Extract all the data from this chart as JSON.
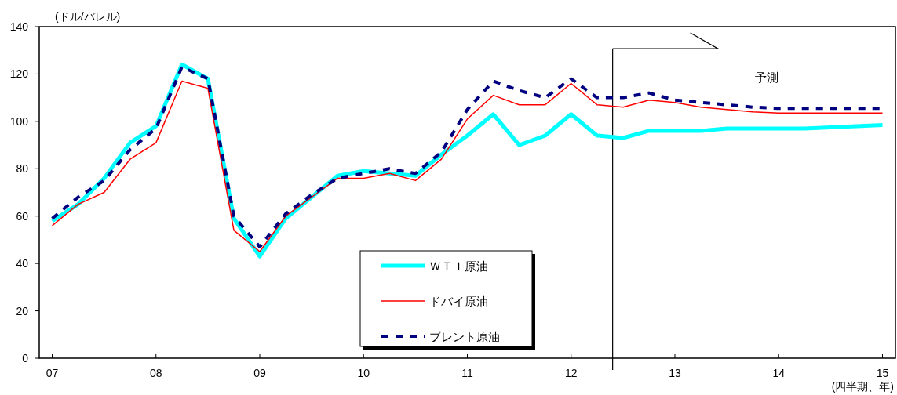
{
  "chart_data": {
    "type": "line",
    "ylabel": "(ドル/バレル)",
    "xlabel": "(四半期、年)",
    "xlim": [
      2006.875,
      2015.125
    ],
    "ylim": [
      0,
      140
    ],
    "xticks": [
      {
        "value": 2007,
        "label": "07"
      },
      {
        "value": 2008,
        "label": "08"
      },
      {
        "value": 2009,
        "label": "09"
      },
      {
        "value": 2010,
        "label": "10"
      },
      {
        "value": 2011,
        "label": "11"
      },
      {
        "value": 2012,
        "label": "12"
      },
      {
        "value": 2013,
        "label": "13"
      },
      {
        "value": 2014,
        "label": "14"
      },
      {
        "value": 2015,
        "label": "15"
      }
    ],
    "yticks": [
      0,
      20,
      40,
      60,
      80,
      100,
      120,
      140
    ],
    "x": [
      2007,
      2007.25,
      2007.5,
      2007.75,
      2008,
      2008.25,
      2008.5,
      2008.75,
      2009,
      2009.25,
      2009.5,
      2009.75,
      2010,
      2010.25,
      2010.5,
      2010.75,
      2011,
      2011.25,
      2011.5,
      2011.75,
      2012,
      2012.25,
      2012.5,
      2012.75,
      2013,
      2013.25,
      2013.5,
      2013.75,
      2014,
      2014.25,
      2014.5,
      2014.75,
      2015
    ],
    "legend": "bottom",
    "series": [
      {
        "name": "ＷＴＩ原油",
        "color": "#00ffff",
        "line_style": "solid",
        "values": [
          58,
          65,
          76,
          91,
          98,
          124,
          118,
          59,
          43,
          59,
          68,
          77,
          79,
          78,
          77,
          86,
          94,
          103,
          90,
          94,
          103,
          94,
          93,
          96,
          96,
          96,
          97,
          97,
          97,
          97,
          97.5,
          98,
          98.5
        ]
      },
      {
        "name": "ドバイ原油",
        "color": "#ff0000",
        "line_style": "solid",
        "values": [
          56,
          65,
          70,
          84,
          91,
          117,
          114,
          54,
          45,
          60,
          68,
          76,
          76,
          78,
          75,
          84,
          101,
          111,
          107,
          107,
          116,
          107,
          106,
          109,
          108,
          106,
          105,
          104,
          103.5,
          103.5,
          103.5,
          103.5,
          103.5
        ]
      },
      {
        "name": "ブレント原油",
        "color": "#000080",
        "line_style": "dashed",
        "values": [
          59,
          68,
          75,
          88,
          97,
          123,
          118,
          60,
          47,
          61,
          69,
          76,
          78,
          80,
          78,
          87,
          105,
          117,
          113,
          110,
          118,
          110,
          110,
          112,
          109,
          108,
          107,
          106,
          105.5,
          105.5,
          105.5,
          105.5,
          105.5
        ]
      }
    ],
    "ref_lines": [
      {
        "axis": "x",
        "value": 2012.4,
        "color": "#000000"
      }
    ],
    "annotations": [
      "予測"
    ]
  }
}
